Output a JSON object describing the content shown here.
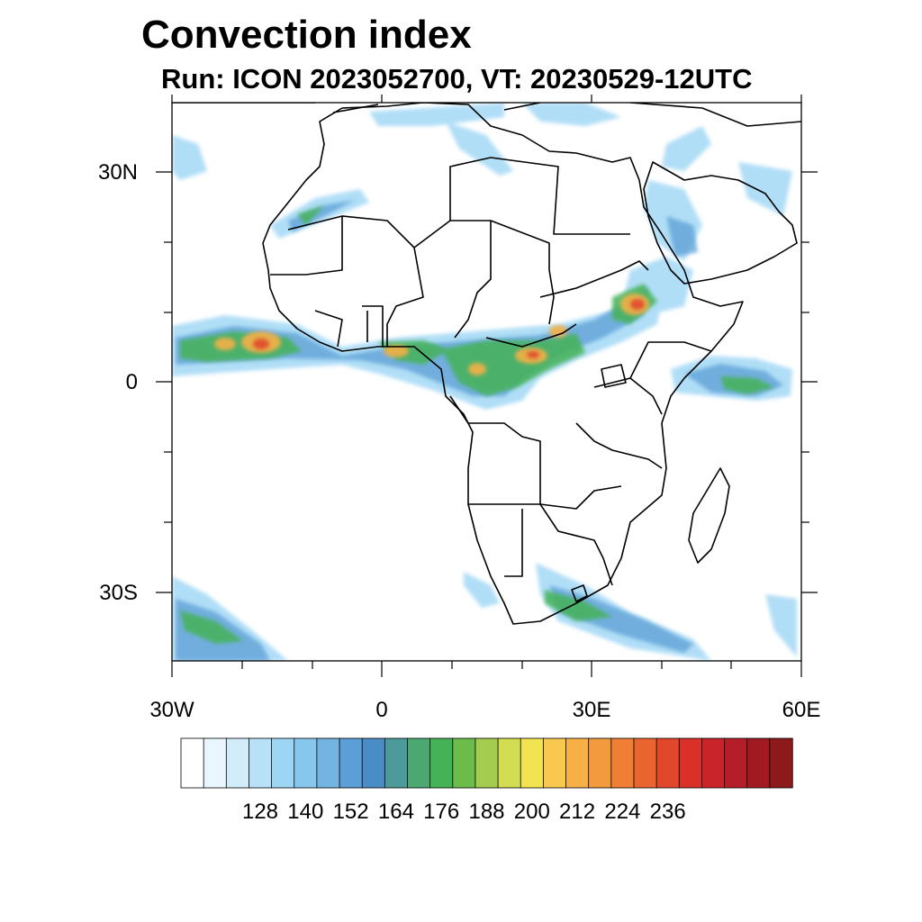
{
  "title": "Convection index",
  "subtitle": "Run: ICON 2023052700,  VT: 20230529-12UTC",
  "map": {
    "extent": {
      "lon": [
        -30,
        60
      ],
      "lat": [
        -40,
        40
      ]
    },
    "lat_ticks": [
      {
        "value": 30,
        "label": "30N"
      },
      {
        "value": 0,
        "label": "0"
      },
      {
        "value": -30,
        "label": "30S"
      }
    ],
    "lon_ticks": [
      {
        "value": -30,
        "label": "30W"
      },
      {
        "value": 0,
        "label": "0"
      },
      {
        "value": 30,
        "label": "30E"
      },
      {
        "value": 60,
        "label": "60E"
      }
    ],
    "region": "Africa and surrounding oceans"
  },
  "colorbar": {
    "labels": [
      "128",
      "140",
      "152",
      "164",
      "176",
      "188",
      "200",
      "212",
      "224",
      "236"
    ],
    "colors": [
      "#ffffff",
      "#eaf6fd",
      "#d2ecfa",
      "#b8e1f7",
      "#9dd6f5",
      "#87c7ee",
      "#74b4e3",
      "#5c9fd6",
      "#4a8cc6",
      "#4c9a9a",
      "#4aa870",
      "#45b257",
      "#6cbc4c",
      "#a4cc4e",
      "#d2dd52",
      "#f2e351",
      "#f8c94e",
      "#f6b046",
      "#f39a3e",
      "#ef7f35",
      "#e9642e",
      "#e1482b",
      "#d93029",
      "#c9242a",
      "#b51d28",
      "#a11a22",
      "#8c1a1a"
    ]
  }
}
